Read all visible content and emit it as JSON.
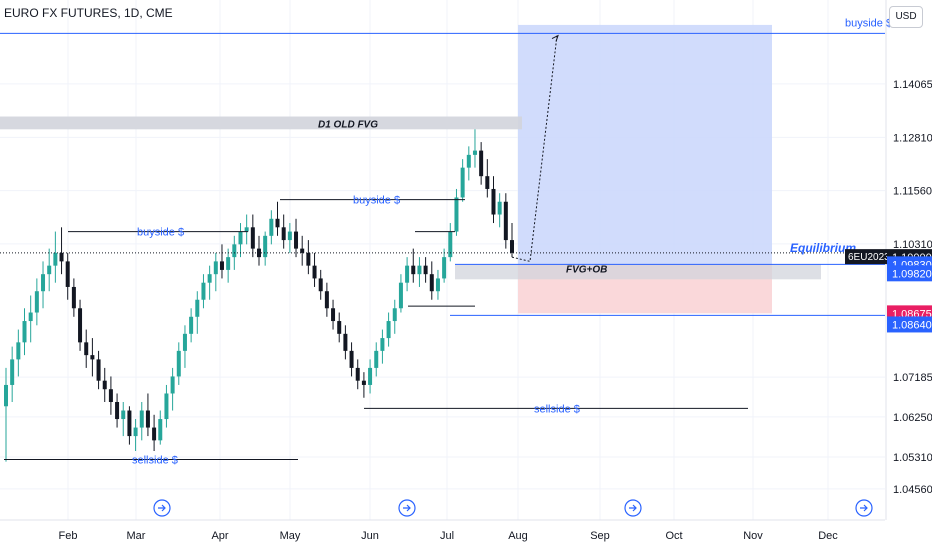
{
  "header": {
    "title": "EURO FX FUTURES, 1D, CME",
    "currency": "USD"
  },
  "colors": {
    "up": "#26a69a",
    "down": "#131722",
    "blue_line": "#2962ff",
    "target_zone": "#c9d6fb",
    "stop_zone": "#f9d4d6",
    "fvg": "#d1d4dc"
  },
  "chart_data": {
    "type": "candlestick",
    "title": "EURO FX FUTURES, 1D, CME",
    "x_labels": [
      "Feb",
      "Mar",
      "Apr",
      "May",
      "Jun",
      "Jul",
      "Aug",
      "Sep",
      "Oct",
      "Nov",
      "Dec"
    ],
    "y_ticks": [
      "1.14065",
      "1.12810",
      "1.11560",
      "1.10310",
      "1.07185",
      "1.06250",
      "1.05310",
      "1.04560"
    ],
    "ylim": [
      1.043,
      1.158
    ],
    "price_labels": [
      {
        "label": "6EU2023",
        "value": "1.10000",
        "price": 1.1,
        "bg": "#131722"
      },
      {
        "label": "",
        "value": "1.09830",
        "price": 1.0983,
        "bg": "#2962ff"
      },
      {
        "label": "",
        "value": "1.09820",
        "price": 1.0962,
        "bg": "#2962ff"
      },
      {
        "label": "",
        "value": "1.08675",
        "price": 1.0868,
        "bg": "#e91e63"
      },
      {
        "label": "",
        "value": "1.08640",
        "price": 1.0842,
        "bg": "#2962ff"
      }
    ],
    "partial_tick": "1.08410",
    "annotations": {
      "buyside_top": "buyside $",
      "buyside_1": "buyside $",
      "buyside_2": "buyside $",
      "sellside_1": "sellside $",
      "sellside_2": "sellside $",
      "d1_fvg": "D1 OLD FVG",
      "fvg_ob": "FVG+OB",
      "equilibrium": "Equilibrium"
    },
    "levels": {
      "target_high": 1.1545,
      "top_blue": 1.1525,
      "d1_fvg": [
        1.13,
        1.133
      ],
      "buyside_1": 1.106,
      "buyside_2": 1.1135,
      "equilibrium": 1.101,
      "position_entry": 1.0983,
      "fvg_ob": [
        1.0962,
        1.0983
      ],
      "stop": 1.0868,
      "lower_blue": 1.0868,
      "sellside_1": 1.0525,
      "sellside_2": 1.0645,
      "low_line_jul": 1.0885
    },
    "candles": [
      [
        1.065,
        1.074,
        1.052,
        1.07
      ],
      [
        1.07,
        1.079,
        1.066,
        1.076
      ],
      [
        1.076,
        1.083,
        1.072,
        1.08
      ],
      [
        1.08,
        1.088,
        1.077,
        1.085
      ],
      [
        1.085,
        1.091,
        1.08,
        1.087
      ],
      [
        1.087,
        1.095,
        1.084,
        1.092
      ],
      [
        1.092,
        1.099,
        1.088,
        1.096
      ],
      [
        1.096,
        1.102,
        1.092,
        1.098
      ],
      [
        1.098,
        1.106,
        1.094,
        1.101
      ],
      [
        1.101,
        1.107,
        1.096,
        1.099
      ],
      [
        1.099,
        1.101,
        1.09,
        1.093
      ],
      [
        1.093,
        1.095,
        1.086,
        1.088
      ],
      [
        1.088,
        1.09,
        1.078,
        1.08
      ],
      [
        1.08,
        1.083,
        1.074,
        1.077
      ],
      [
        1.077,
        1.081,
        1.072,
        1.076
      ],
      [
        1.076,
        1.078,
        1.069,
        1.071
      ],
      [
        1.071,
        1.074,
        1.066,
        1.069
      ],
      [
        1.069,
        1.072,
        1.063,
        1.066
      ],
      [
        1.066,
        1.068,
        1.06,
        1.062
      ],
      [
        1.062,
        1.066,
        1.058,
        1.064
      ],
      [
        1.064,
        1.065,
        1.056,
        1.058
      ],
      [
        1.058,
        1.062,
        1.0545,
        1.06
      ],
      [
        1.06,
        1.066,
        1.057,
        1.064
      ],
      [
        1.064,
        1.068,
        1.058,
        1.06
      ],
      [
        1.06,
        1.063,
        1.0545,
        1.057
      ],
      [
        1.057,
        1.064,
        1.056,
        1.062
      ],
      [
        1.062,
        1.07,
        1.06,
        1.068
      ],
      [
        1.068,
        1.074,
        1.064,
        1.072
      ],
      [
        1.072,
        1.08,
        1.07,
        1.078
      ],
      [
        1.078,
        1.084,
        1.074,
        1.082
      ],
      [
        1.082,
        1.088,
        1.08,
        1.086
      ],
      [
        1.086,
        1.092,
        1.082,
        1.09
      ],
      [
        1.09,
        1.096,
        1.088,
        1.094
      ],
      [
        1.094,
        1.098,
        1.09,
        1.096
      ],
      [
        1.096,
        1.101,
        1.092,
        1.099
      ],
      [
        1.099,
        1.103,
        1.095,
        1.097
      ],
      [
        1.097,
        1.102,
        1.094,
        1.1
      ],
      [
        1.1,
        1.105,
        1.097,
        1.103
      ],
      [
        1.103,
        1.108,
        1.1,
        1.106
      ],
      [
        1.106,
        1.11,
        1.103,
        1.107
      ],
      [
        1.107,
        1.11,
        1.1,
        1.102
      ],
      [
        1.102,
        1.105,
        1.098,
        1.1
      ],
      [
        1.1,
        1.106,
        1.098,
        1.105
      ],
      [
        1.105,
        1.111,
        1.103,
        1.109
      ],
      [
        1.109,
        1.113,
        1.105,
        1.107
      ],
      [
        1.107,
        1.11,
        1.102,
        1.104
      ],
      [
        1.104,
        1.108,
        1.101,
        1.106
      ],
      [
        1.106,
        1.109,
        1.1,
        1.102
      ],
      [
        1.102,
        1.105,
        1.098,
        1.101
      ],
      [
        1.101,
        1.104,
        1.096,
        1.098
      ],
      [
        1.098,
        1.101,
        1.093,
        1.095
      ],
      [
        1.095,
        1.097,
        1.09,
        1.092
      ],
      [
        1.092,
        1.094,
        1.086,
        1.088
      ],
      [
        1.088,
        1.09,
        1.083,
        1.085
      ],
      [
        1.085,
        1.087,
        1.08,
        1.082
      ],
      [
        1.082,
        1.084,
        1.076,
        1.078
      ],
      [
        1.078,
        1.08,
        1.072,
        1.074
      ],
      [
        1.074,
        1.076,
        1.069,
        1.071
      ],
      [
        1.071,
        1.073,
        1.067,
        1.07
      ],
      [
        1.07,
        1.076,
        1.068,
        1.074
      ],
      [
        1.074,
        1.08,
        1.072,
        1.078
      ],
      [
        1.078,
        1.083,
        1.075,
        1.081
      ],
      [
        1.081,
        1.087,
        1.079,
        1.085
      ],
      [
        1.085,
        1.09,
        1.082,
        1.088
      ],
      [
        1.088,
        1.096,
        1.087,
        1.094
      ],
      [
        1.094,
        1.1,
        1.092,
        1.098
      ],
      [
        1.098,
        1.102,
        1.094,
        1.096
      ],
      [
        1.096,
        1.1,
        1.093,
        1.098
      ],
      [
        1.098,
        1.1,
        1.094,
        1.096
      ],
      [
        1.096,
        1.099,
        1.09,
        1.092
      ],
      [
        1.092,
        1.097,
        1.09,
        1.095
      ],
      [
        1.095,
        1.102,
        1.094,
        1.1
      ],
      [
        1.1,
        1.108,
        1.099,
        1.106
      ],
      [
        1.106,
        1.116,
        1.105,
        1.114
      ],
      [
        1.114,
        1.123,
        1.113,
        1.121
      ],
      [
        1.121,
        1.126,
        1.118,
        1.124
      ],
      [
        1.124,
        1.13,
        1.121,
        1.125
      ],
      [
        1.125,
        1.127,
        1.117,
        1.119
      ],
      [
        1.119,
        1.123,
        1.114,
        1.116
      ],
      [
        1.116,
        1.119,
        1.108,
        1.11
      ],
      [
        1.11,
        1.115,
        1.107,
        1.113
      ],
      [
        1.113,
        1.115,
        1.102,
        1.104
      ],
      [
        1.104,
        1.108,
        1.1,
        1.101
      ]
    ],
    "grid": true
  }
}
